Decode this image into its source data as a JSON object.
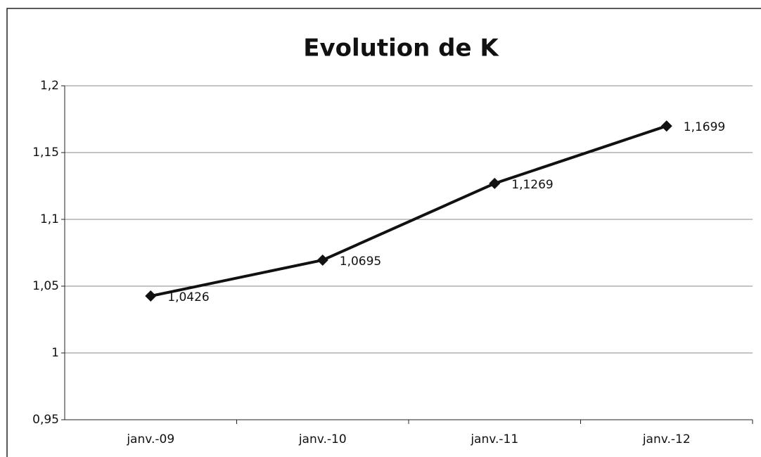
{
  "chart_data": {
    "type": "line",
    "title": "Evolution de K",
    "categories": [
      "janv.-09",
      "janv.-10",
      "janv.-11",
      "janv.-12"
    ],
    "series": [
      {
        "name": "K",
        "color": "#111111",
        "values": [
          1.0426,
          1.0695,
          1.1269,
          1.1699
        ],
        "value_labels": [
          "1,0426",
          "1,0695",
          "1,1269",
          "1,1699"
        ]
      }
    ],
    "ylim": [
      0.95,
      1.2
    ],
    "yticks": [
      {
        "value": 0.95,
        "label": "0,95"
      },
      1,
      {
        "value": 1.05,
        "label": "1,05"
      },
      {
        "value": 1.1,
        "label": "1,1"
      },
      {
        "value": 1.15,
        "label": "1,15"
      },
      {
        "value": 1.2,
        "label": "1,2"
      }
    ],
    "grid": true
  }
}
